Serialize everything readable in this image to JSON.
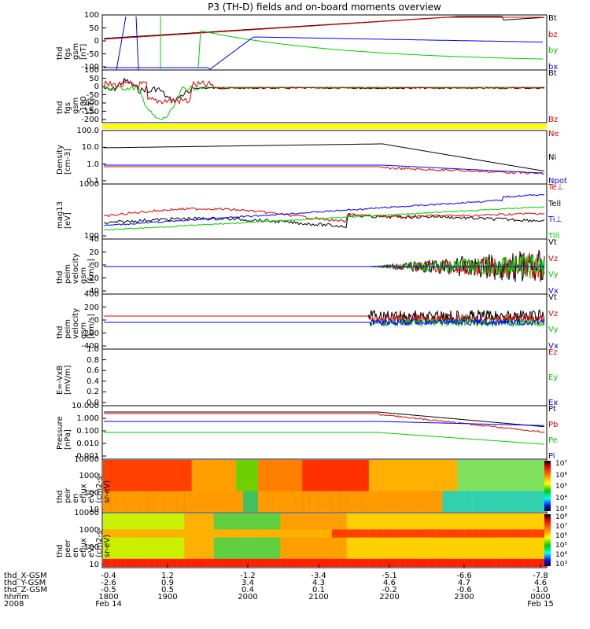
{
  "title": "P3 (TH-D) fields and on-board moments overview",
  "colors": {
    "black": "#000000",
    "red": "#e00000",
    "green": "#00cc00",
    "blue": "#0000ff",
    "yellow": "#ffff00"
  },
  "chart_data": [
    {
      "type": "line",
      "panel": "fgs",
      "ylabel": [
        "thd",
        "fgs",
        "gsm",
        "[nT]"
      ],
      "yticks": [
        "100",
        "50",
        "0",
        "-50",
        "-100"
      ],
      "legend": [
        "Bt",
        "bz",
        "by",
        "bx"
      ],
      "ylim": [
        -100,
        100
      ],
      "grid": false
    },
    {
      "type": "line",
      "panel": "fgl",
      "ylabel": [
        "thd",
        "fgs",
        "gsm",
        "-100",
        "[nT]"
      ],
      "yticks": [
        "100",
        "50",
        "0",
        "-50",
        "-100",
        "-150",
        "-200"
      ],
      "legend": [
        "Bt",
        "Bz"
      ],
      "ylim": [
        -220,
        100
      ]
    },
    {
      "type": "line",
      "panel": "density",
      "ylabel": [
        "Density",
        "[cm-3]"
      ],
      "yticks": [
        "100.0",
        "10.0",
        "1.0",
        "0.1"
      ],
      "scale": "log",
      "legend": [
        "Ne",
        "Ni",
        "Npot"
      ]
    },
    {
      "type": "line",
      "panel": "temperature",
      "ylabel": [
        "mag13",
        "[eV]"
      ],
      "yticks": [
        "1000",
        "100"
      ],
      "scale": "log",
      "legend": [
        "Te⊥",
        "Tell",
        "Ti⊥",
        "Till"
      ]
    },
    {
      "type": "line",
      "panel": "velocity1",
      "ylabel": [
        "thd",
        "peim",
        "velocity",
        "gsm",
        "[km/s]"
      ],
      "yticks": [
        "40",
        "20",
        "0",
        "-20",
        "-40"
      ],
      "legend": [
        "Vt",
        "Vz",
        "Vy",
        "Vx"
      ],
      "ylim": [
        -40,
        40
      ]
    },
    {
      "type": "line",
      "panel": "velocity2",
      "ylabel": [
        "thd",
        "peim",
        "velocity",
        "gsm",
        "[km/s]"
      ],
      "yticks": [
        "400",
        "200",
        "0",
        "-200",
        "-400"
      ],
      "legend": [
        "Vt",
        "Vz",
        "Vy",
        "Vx"
      ],
      "ylim": [
        -400,
        400
      ]
    },
    {
      "type": "line",
      "panel": "efield",
      "ylabel": [
        "E=-VxB",
        "[mV/m]"
      ],
      "yticks": [
        "1.0",
        "0.8",
        "0.6",
        "0.4",
        "0.2",
        "0.0"
      ],
      "legend": [
        "Ez",
        "Ey",
        "Ex"
      ],
      "ylim": [
        0,
        1
      ]
    },
    {
      "type": "line",
      "panel": "pressure",
      "ylabel": [
        "Pressure",
        "[nPa]"
      ],
      "yticks": [
        "10.000",
        "1.000",
        "0.100",
        "0.010",
        "0.001"
      ],
      "scale": "log",
      "legend": [
        "Pt",
        "Pb",
        "Pe",
        "Pi"
      ]
    },
    {
      "type": "heatmap",
      "panel": "ion-spec",
      "ylabel": [
        "thd",
        "peir",
        "en",
        "eflux",
        "eV/",
        "(cm2-s-",
        "sr-eV)"
      ],
      "yticks": [
        "10000",
        "1000",
        "100",
        "10"
      ],
      "colorbar": [
        "10⁷",
        "10⁶",
        "10⁵",
        "10⁴",
        "10³"
      ]
    },
    {
      "type": "heatmap",
      "panel": "elec-spec",
      "ylabel": [
        "thd",
        "peer",
        "en",
        "eflux",
        "eV/",
        "(cm2-s-",
        "sr-eV)"
      ],
      "yticks": [
        "10000",
        "1000",
        "100",
        "10"
      ],
      "colorbar": [
        "10⁸",
        "10⁷",
        "10⁶",
        "10⁵",
        "10⁴",
        "10³"
      ]
    }
  ],
  "xaxis": {
    "rows": [
      {
        "name": "thd_X-GSM",
        "values": [
          "-0.4",
          "1.2",
          "-1.2",
          "-3.4",
          "-5.1",
          "-6.6",
          "-7.8"
        ]
      },
      {
        "name": "thd_Y-GSM",
        "values": [
          "-2.6",
          "0.9",
          "3.4",
          "4.3",
          "4.6",
          "4.7",
          "4.6"
        ]
      },
      {
        "name": "thd_Z-GSM",
        "values": [
          "-0.5",
          "0.5",
          "0.4",
          "0.1",
          "-0.2",
          "-0.6",
          "-1.0"
        ]
      },
      {
        "name": "hhmm",
        "values": [
          "1800",
          "1900",
          "2000",
          "2100",
          "2200",
          "2300",
          "0000"
        ]
      },
      {
        "name": "2008",
        "values": [
          "Feb 14",
          "",
          "",
          "",
          "",
          "",
          "Feb 15"
        ]
      }
    ]
  }
}
